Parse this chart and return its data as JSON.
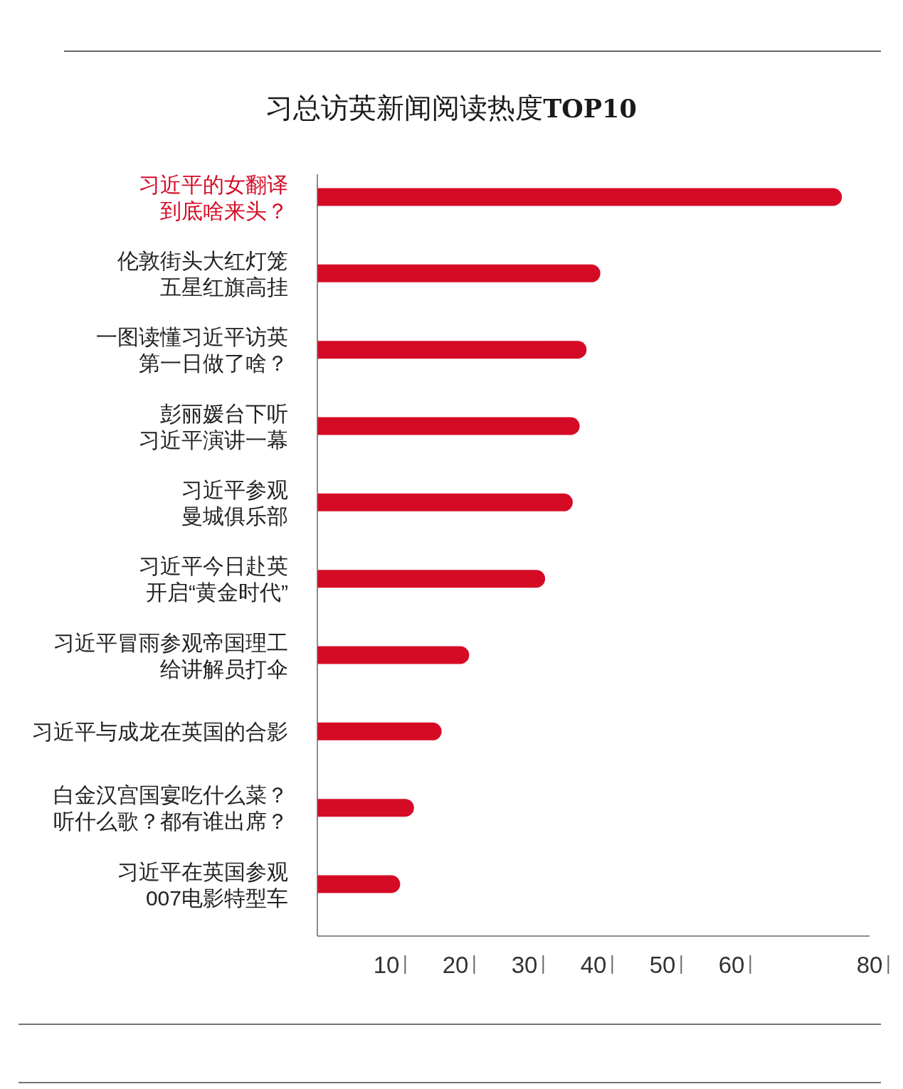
{
  "chart_data": {
    "type": "bar",
    "orientation": "horizontal",
    "title": "习总访英新闻阅读热度TOP10",
    "categories": [
      "习近平的女翻译到底啥来头？",
      "伦敦街头大红灯笼五星红旗高挂",
      "一图读懂习近平访英第一日做了啥？",
      "彭丽媛台下听习近平演讲一幕",
      "习近平参观曼城俱乐部",
      "习近平今日赴英开启“黄金时代”",
      "习近平冒雨参观帝国理工给讲解员打伞",
      "习近平与成龙在英国的合影",
      "白金汉宫国宴吃什么菜？听什么歌？都有谁出席？",
      "习近平在英国参观007电影特型车"
    ],
    "values": [
      76,
      41,
      39,
      38,
      37,
      33,
      22,
      18,
      14,
      12
    ],
    "color": "#d50b25",
    "xlim": [
      0,
      80
    ],
    "xticks": [
      10,
      20,
      30,
      40,
      50,
      60,
      80
    ]
  }
}
